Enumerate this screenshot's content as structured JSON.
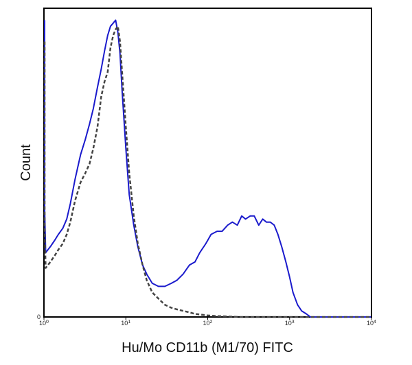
{
  "chart_data": {
    "type": "line",
    "title": "",
    "xlabel": "Hu/Mo CD11b (M1/70) FITC",
    "ylabel": "Count",
    "xscale": "log",
    "xlim": [
      1,
      10000
    ],
    "ylim": [
      0,
      1
    ],
    "grid": false,
    "legend": "none",
    "x_ticks": [
      {
        "base": "10",
        "exp": "0",
        "value": 1
      },
      {
        "base": "10",
        "exp": "1",
        "value": 10
      },
      {
        "base": "10",
        "exp": "2",
        "value": 100
      },
      {
        "base": "10",
        "exp": "3",
        "value": 1000
      },
      {
        "base": "10",
        "exp": "4",
        "value": 10000
      }
    ],
    "y_ticks": [
      {
        "label": "0",
        "value": 0
      }
    ],
    "series": [
      {
        "style": "solid",
        "color": "#1a1acc",
        "x": [
          0.95,
          1.0,
          1.05,
          1.12,
          1.2,
          1.35,
          1.5,
          1.7,
          1.9,
          2.1,
          2.4,
          2.8,
          3.2,
          3.6,
          4.0,
          4.5,
          5.0,
          5.5,
          6.0,
          6.5,
          7.0,
          7.5,
          8.0,
          8.5,
          9.0,
          10.0,
          11.0,
          12.5,
          14.0,
          16.0,
          18.0,
          21.0,
          25.0,
          30.0,
          36.0,
          42.0,
          50.0,
          60.0,
          70.0,
          80.0,
          95.0,
          110.0,
          130.0,
          150.0,
          175.0,
          200.0,
          230.0,
          260.0,
          290.0,
          330.0,
          370.0,
          420.0,
          470.0,
          520.0,
          580.0,
          650.0,
          720.0,
          800.0,
          900.0,
          1000.0,
          1100.0,
          1250.0,
          1400.0,
          1600.0,
          1800.0,
          2200.0,
          3000.0,
          5000.0,
          10000.0
        ],
        "y": [
          0.97,
          0.35,
          0.21,
          0.22,
          0.23,
          0.25,
          0.27,
          0.29,
          0.32,
          0.37,
          0.45,
          0.53,
          0.58,
          0.63,
          0.68,
          0.75,
          0.81,
          0.87,
          0.92,
          0.95,
          0.96,
          0.97,
          0.93,
          0.86,
          0.74,
          0.55,
          0.4,
          0.3,
          0.23,
          0.17,
          0.14,
          0.11,
          0.1,
          0.1,
          0.11,
          0.12,
          0.14,
          0.17,
          0.18,
          0.21,
          0.24,
          0.27,
          0.28,
          0.28,
          0.3,
          0.31,
          0.3,
          0.33,
          0.32,
          0.33,
          0.33,
          0.3,
          0.32,
          0.31,
          0.31,
          0.3,
          0.27,
          0.23,
          0.18,
          0.13,
          0.08,
          0.04,
          0.02,
          0.01,
          0.0,
          0.0,
          0.0,
          0.0,
          0.0
        ]
      },
      {
        "style": "dashed",
        "color": "#444444",
        "x": [
          0.95,
          1.0,
          1.05,
          1.12,
          1.2,
          1.35,
          1.5,
          1.7,
          1.9,
          2.1,
          2.4,
          2.8,
          3.2,
          3.6,
          4.0,
          4.5,
          5.0,
          5.5,
          6.0,
          6.5,
          7.0,
          7.5,
          8.0,
          8.5,
          9.0,
          10.0,
          11.0,
          12.5,
          14.0,
          16.0,
          18.0,
          21.0,
          25.0,
          30.0,
          36.0,
          42.0,
          50.0,
          60.0,
          70.0,
          80.0,
          100.0,
          130.0,
          170.0,
          250.0,
          10000.0
        ],
        "y": [
          0.9,
          0.3,
          0.16,
          0.17,
          0.18,
          0.2,
          0.22,
          0.24,
          0.27,
          0.31,
          0.38,
          0.44,
          0.47,
          0.5,
          0.55,
          0.62,
          0.72,
          0.77,
          0.8,
          0.88,
          0.92,
          0.94,
          0.95,
          0.9,
          0.8,
          0.62,
          0.47,
          0.33,
          0.24,
          0.17,
          0.12,
          0.08,
          0.06,
          0.04,
          0.03,
          0.025,
          0.02,
          0.015,
          0.01,
          0.008,
          0.005,
          0.003,
          0.002,
          0.0,
          0.0
        ]
      }
    ]
  }
}
